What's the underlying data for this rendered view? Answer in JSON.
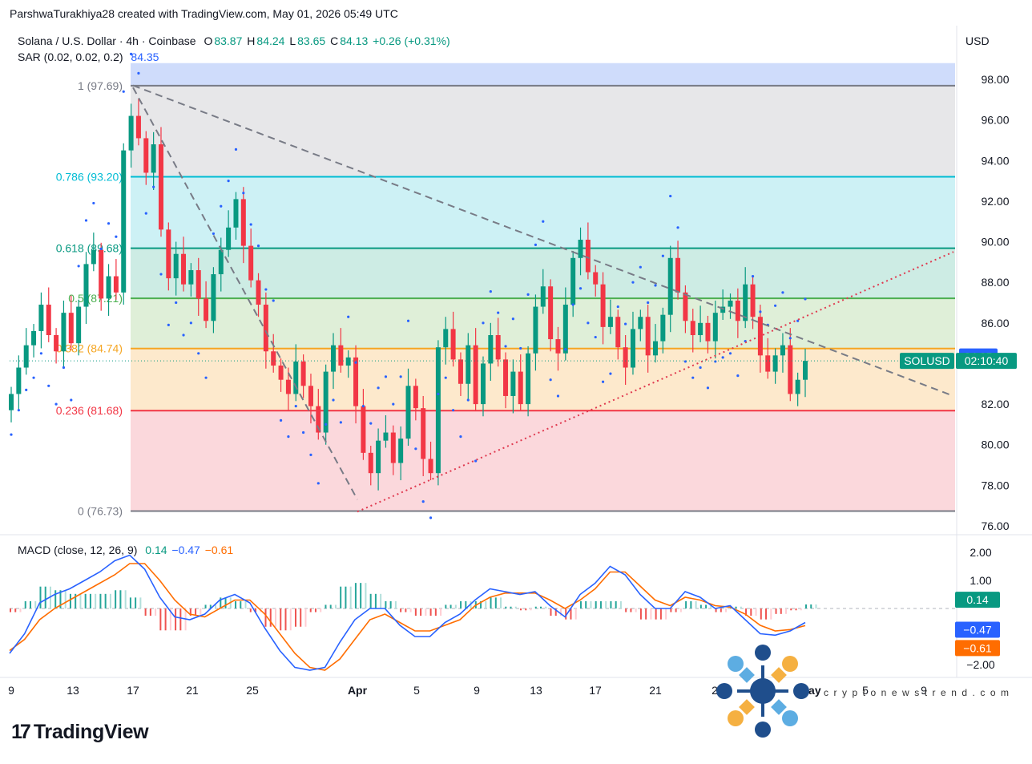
{
  "credit": "ParshwaTurakhiya28 created with TradingView.com, May 01, 2026 05:49 UTC",
  "header": {
    "symbol": "Solana / U.S. Dollar · 4h · Coinbase",
    "open_label": "O",
    "open": "83.87",
    "high_label": "H",
    "high": "84.24",
    "low_label": "L",
    "low": "83.65",
    "close_label": "C",
    "close": "84.13",
    "change": "+0.26 (+0.31%)",
    "sar_label": "SAR (0.02, 0.02, 0.2)",
    "sar_value": "84.35"
  },
  "macd_header": {
    "label": "MACD (close, 12, 26, 9)",
    "hist": "0.14",
    "macd": "−0.47",
    "signal": "−0.61"
  },
  "currency": "USD",
  "brand": "TradingView",
  "watermark": "cryptonewstrend.com",
  "colors": {
    "up": "#089981",
    "down": "#f23645",
    "sar": "#2962ff",
    "macd": "#2962ff",
    "signal": "#ff6d00"
  },
  "chart_data": [
    {
      "type": "candlestick",
      "symbol": "SOLUSD",
      "timeframe": "4h",
      "ylim": [
        76,
        98.8
      ],
      "y_ticks": [
        "98.00",
        "96.00",
        "94.00",
        "92.00",
        "90.00",
        "88.00",
        "86.00",
        "84.00",
        "82.00",
        "80.00",
        "78.00",
        "76.00"
      ],
      "x_ticks": [
        "9",
        "13",
        "17",
        "21",
        "25",
        "Apr",
        "5",
        "9",
        "13",
        "17",
        "21",
        "2",
        "May",
        "5",
        "9"
      ],
      "price_labels": [
        {
          "name": "SAR",
          "value": 84.35,
          "text": "84.35",
          "color": "#2962ff"
        },
        {
          "name": "SOLUSD",
          "value": 84.13,
          "text": "SOLUSD",
          "timer": "02:10:40",
          "color": "#089981"
        }
      ],
      "fib_levels": [
        {
          "ratio": "1",
          "value": 97.69,
          "label": "1 (97.69)",
          "color": "#787b86"
        },
        {
          "ratio": "0.786",
          "value": 93.2,
          "label": "0.786 (93.20)",
          "color": "#00bcd4"
        },
        {
          "ratio": "0.618",
          "value": 89.68,
          "label": "0.618 (89.68)",
          "color": "#089981"
        },
        {
          "ratio": "0.5",
          "value": 87.21,
          "label": "0.5 (87.21)",
          "color": "#4caf50"
        },
        {
          "ratio": "0.382",
          "value": 84.74,
          "label": "0.382 (84.74)",
          "color": "#f5a623"
        },
        {
          "ratio": "0.236",
          "value": 81.68,
          "label": "0.236 (81.68)",
          "color": "#f23645"
        },
        {
          "ratio": "0",
          "value": 76.73,
          "label": "0 (76.73)",
          "color": "#787b86"
        }
      ],
      "trendlines": [
        {
          "name": "descending-resistance",
          "style": "dashed",
          "from": [
            "17",
            97.7
          ],
          "to": [
            "May+",
            82.4
          ]
        },
        {
          "name": "descending-2",
          "style": "dashed",
          "from": [
            "17",
            97.6
          ],
          "to": [
            "Apr",
            77.3
          ]
        },
        {
          "name": "ascending-support",
          "style": "dotted",
          "from": [
            "Apr",
            76.7
          ],
          "to": [
            "May+",
            89.5
          ]
        }
      ],
      "series_close": [
        82.5,
        83.8,
        84.9,
        85.6,
        86.9,
        85.4,
        84.6,
        86.5,
        85.0,
        86.8,
        88.9,
        89.6,
        87.2,
        88.3,
        87.5,
        94.5,
        96.2,
        95.1,
        93.4,
        94.8,
        90.6,
        88.2,
        89.4,
        87.9,
        88.6,
        87.2,
        86.1,
        88.4,
        89.6,
        90.7,
        92.1,
        89.8,
        88.1,
        86.9,
        84.6,
        83.9,
        83.2,
        82.5,
        84.1,
        82.9,
        81.9,
        80.6,
        83.6,
        84.9,
        83.9,
        84.3,
        81.9,
        79.6,
        78.6,
        80.2,
        80.6,
        79.1,
        80.3,
        82.9,
        81.8,
        79.3,
        78.6,
        84.8,
        85.7,
        84.2,
        83.0,
        84.9,
        82.0,
        84.0,
        85.4,
        84.2,
        82.4,
        83.6,
        82.0,
        84.5,
        86.8,
        87.8,
        85.2,
        84.5,
        86.9,
        89.2,
        90.1,
        88.5,
        87.9,
        85.8,
        86.3,
        84.8,
        83.8,
        85.7,
        86.3,
        84.4,
        85.1,
        86.4,
        89.2,
        87.5,
        86.1,
        85.4,
        86.0,
        85.1,
        86.5,
        86.8,
        87.1,
        86.1,
        87.9,
        86.3,
        84.4,
        83.6,
        84.4,
        84.9,
        82.5,
        83.2,
        84.13
      ],
      "sar_range": [
        "80.3",
        "97.8"
      ]
    },
    {
      "type": "macd",
      "params": "close, 12, 26, 9",
      "ylim": [
        -2.3,
        2.3
      ],
      "y_ticks": [
        "2.00",
        "1.00",
        "−2.00"
      ],
      "labels": [
        {
          "name": "histogram",
          "text": "0.14",
          "color": "#089981",
          "value": 0.14
        },
        {
          "name": "macd",
          "text": "−0.47",
          "color": "#2962ff",
          "value": -0.47
        },
        {
          "name": "signal",
          "text": "−0.61",
          "color": "#ff6d00",
          "value": -0.61
        }
      ],
      "macd_line": [
        -1.6,
        -0.9,
        0.2,
        0.5,
        0.7,
        1.0,
        1.3,
        1.7,
        1.9,
        1.4,
        0.4,
        -0.3,
        -0.4,
        -0.2,
        0.3,
        0.5,
        0.2,
        -0.7,
        -1.5,
        -2.1,
        -2.2,
        -2.1,
        -1.2,
        -0.4,
        0.0,
        0.0,
        -0.6,
        -1.0,
        -1.0,
        -0.5,
        -0.2,
        0.3,
        0.7,
        0.6,
        0.5,
        0.6,
        0.1,
        -0.3,
        0.5,
        0.9,
        1.5,
        1.2,
        0.5,
        0.0,
        0.0,
        0.6,
        0.4,
        0.0,
        0.1,
        -0.4,
        -0.9,
        -0.95,
        -0.8,
        -0.5
      ],
      "signal_line": [
        -1.5,
        -1.1,
        -0.4,
        0.0,
        0.3,
        0.6,
        0.9,
        1.2,
        1.6,
        1.6,
        1.0,
        0.3,
        -0.2,
        -0.3,
        0.0,
        0.3,
        0.3,
        -0.2,
        -0.9,
        -1.6,
        -2.1,
        -2.2,
        -1.8,
        -1.1,
        -0.4,
        -0.2,
        -0.5,
        -0.8,
        -0.8,
        -0.6,
        -0.4,
        0.1,
        0.4,
        0.55,
        0.55,
        0.55,
        0.3,
        0.0,
        0.3,
        0.7,
        1.3,
        1.3,
        0.8,
        0.3,
        0.1,
        0.4,
        0.3,
        0.1,
        0.05,
        -0.2,
        -0.6,
        -0.8,
        -0.75,
        -0.61
      ]
    }
  ]
}
